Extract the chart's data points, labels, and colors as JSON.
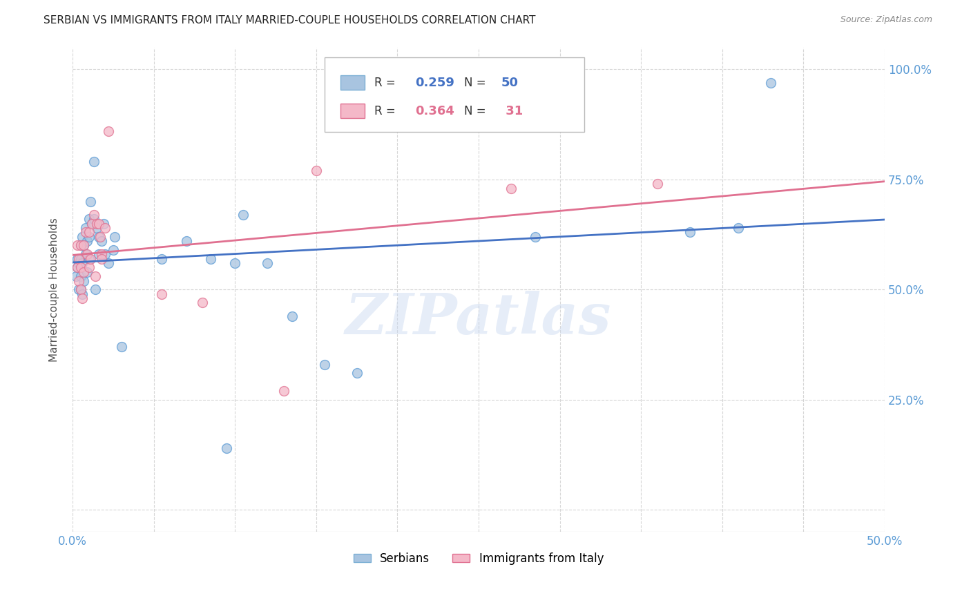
{
  "title": "SERBIAN VS IMMIGRANTS FROM ITALY MARRIED-COUPLE HOUSEHOLDS CORRELATION CHART",
  "source": "Source: ZipAtlas.com",
  "ylabel_label": "Married-couple Households",
  "xlim": [
    0.0,
    0.5
  ],
  "ylim": [
    -0.05,
    1.05
  ],
  "serbians": {
    "x": [
      0.002,
      0.003,
      0.003,
      0.004,
      0.004,
      0.005,
      0.005,
      0.005,
      0.005,
      0.006,
      0.006,
      0.006,
      0.007,
      0.007,
      0.008,
      0.008,
      0.009,
      0.009,
      0.01,
      0.01,
      0.01,
      0.011,
      0.012,
      0.013,
      0.013,
      0.014,
      0.015,
      0.016,
      0.016,
      0.018,
      0.019,
      0.02,
      0.022,
      0.025,
      0.026,
      0.03,
      0.055,
      0.07,
      0.085,
      0.095,
      0.1,
      0.105,
      0.12,
      0.135,
      0.155,
      0.175,
      0.285,
      0.38,
      0.41,
      0.43
    ],
    "y": [
      0.53,
      0.55,
      0.57,
      0.56,
      0.5,
      0.6,
      0.57,
      0.53,
      0.5,
      0.62,
      0.56,
      0.49,
      0.6,
      0.52,
      0.64,
      0.58,
      0.61,
      0.54,
      0.66,
      0.62,
      0.57,
      0.7,
      0.65,
      0.79,
      0.66,
      0.5,
      0.64,
      0.62,
      0.58,
      0.61,
      0.65,
      0.58,
      0.56,
      0.59,
      0.62,
      0.37,
      0.57,
      0.61,
      0.57,
      0.14,
      0.56,
      0.67,
      0.56,
      0.44,
      0.33,
      0.31,
      0.62,
      0.63,
      0.64,
      0.97
    ],
    "color": "#a8c4e0",
    "edge_color": "#5b9bd5",
    "r": 0.259,
    "n": 50
  },
  "italians": {
    "x": [
      0.003,
      0.003,
      0.004,
      0.004,
      0.005,
      0.005,
      0.005,
      0.006,
      0.007,
      0.007,
      0.008,
      0.009,
      0.01,
      0.01,
      0.011,
      0.012,
      0.013,
      0.014,
      0.015,
      0.016,
      0.017,
      0.018,
      0.018,
      0.02,
      0.022,
      0.055,
      0.08,
      0.13,
      0.27,
      0.36,
      0.15
    ],
    "y": [
      0.55,
      0.6,
      0.52,
      0.57,
      0.6,
      0.55,
      0.5,
      0.48,
      0.6,
      0.54,
      0.63,
      0.58,
      0.63,
      0.55,
      0.57,
      0.65,
      0.67,
      0.53,
      0.65,
      0.65,
      0.62,
      0.58,
      0.57,
      0.64,
      0.86,
      0.49,
      0.47,
      0.27,
      0.73,
      0.74,
      0.77
    ],
    "color": "#f4b8c8",
    "edge_color": "#e07090",
    "r": 0.364,
    "n": 31
  },
  "blue_line_color": "#4472c4",
  "pink_line_color": "#e07090",
  "watermark": "ZIPatlas",
  "background_color": "#ffffff",
  "grid_color": "#cccccc",
  "tick_color": "#5b9bd5",
  "title_fontsize": 11,
  "source_fontsize": 9,
  "ylabel_fontsize": 11
}
